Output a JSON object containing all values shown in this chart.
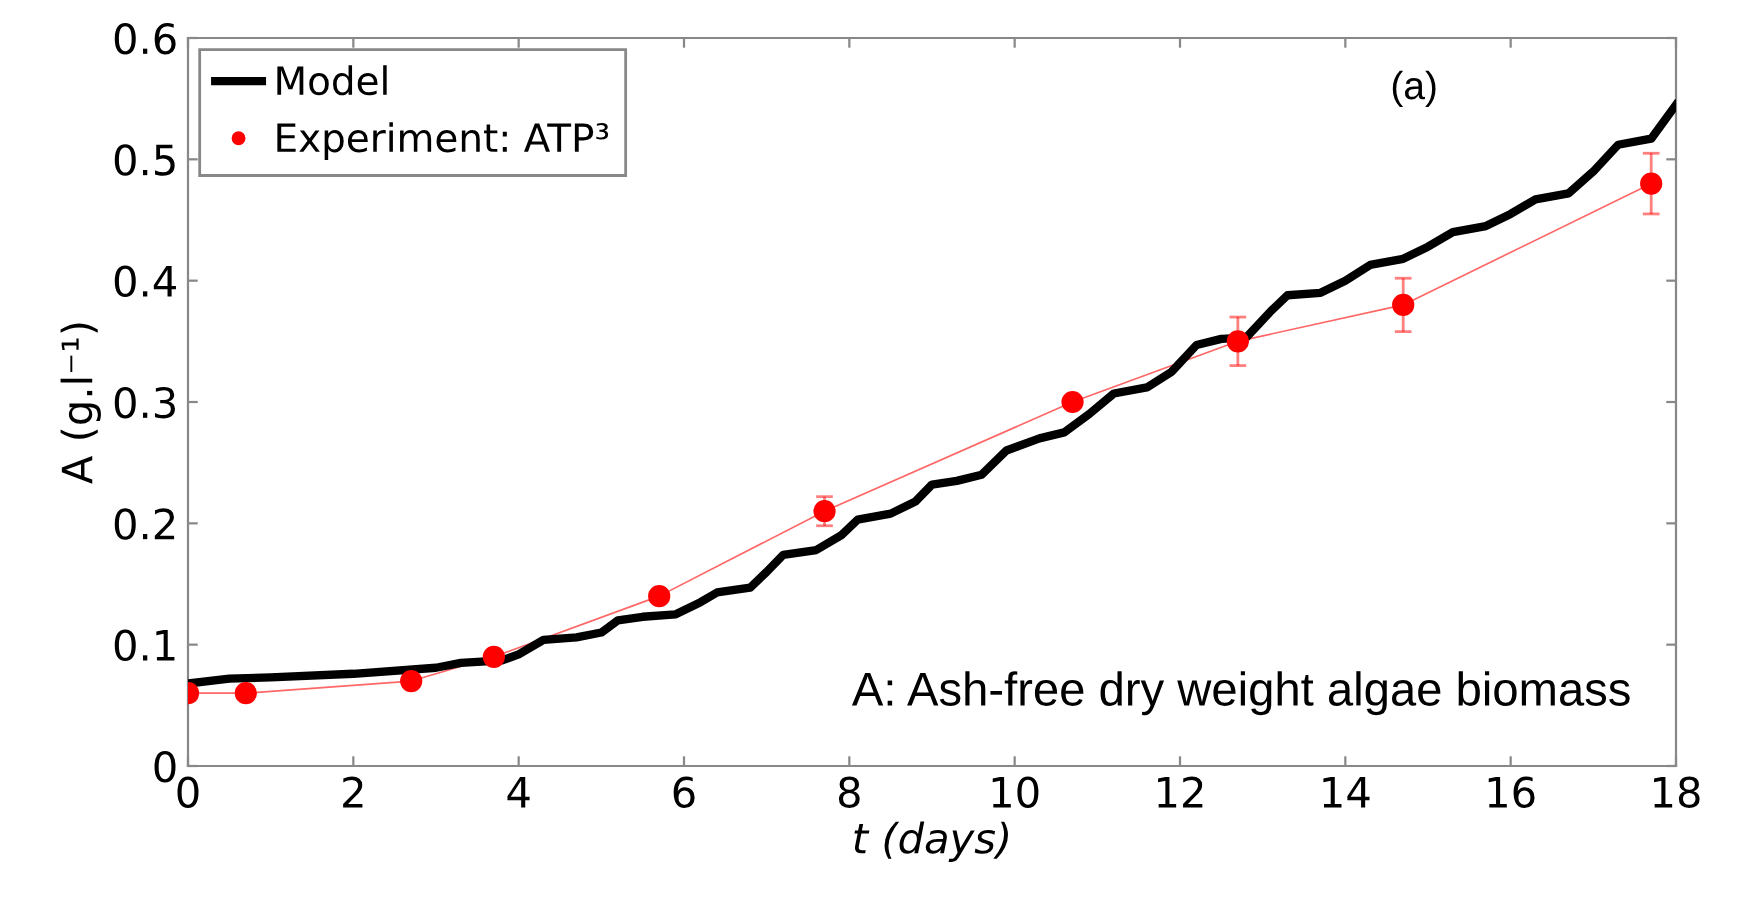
{
  "chart_data": {
    "type": "line",
    "xlabel": "t (days)",
    "ylabel": "A (g.l⁻¹)",
    "xlim": [
      0,
      18
    ],
    "xticks": [
      0,
      2,
      4,
      6,
      8,
      10,
      12,
      14,
      16,
      18
    ],
    "ylim": [
      0,
      0.6
    ],
    "yticks": [
      0,
      0.1,
      0.2,
      0.3,
      0.4,
      0.5,
      0.6
    ],
    "grid": false,
    "legend": "top left",
    "annotations": [
      "(a)",
      "A: Ash-free dry weight algae biomass"
    ],
    "series": [
      {
        "name": "Model",
        "color": "#000000",
        "marker": "none",
        "line_style": "solid",
        "x": [
          0,
          0.5,
          1,
          2,
          3,
          3.3,
          3.8,
          4.0,
          4.3,
          4.7,
          5,
          5.2,
          5.5,
          5.9,
          6.2,
          6.4,
          6.8,
          7.0,
          7.2,
          7.6,
          7.9,
          8.1,
          8.5,
          8.8,
          9.0,
          9.3,
          9.6,
          9.9,
          10.3,
          10.6,
          10.9,
          11.2,
          11.6,
          11.9,
          12.2,
          12.5,
          12.8,
          13.1,
          13.3,
          13.7,
          14.0,
          14.3,
          14.7,
          15.0,
          15.3,
          15.7,
          16.0,
          16.3,
          16.7,
          17.0,
          17.3,
          17.7,
          18
        ],
        "values": [
          0.068,
          0.072,
          0.073,
          0.076,
          0.081,
          0.085,
          0.087,
          0.092,
          0.104,
          0.106,
          0.11,
          0.12,
          0.123,
          0.125,
          0.135,
          0.143,
          0.147,
          0.16,
          0.174,
          0.178,
          0.19,
          0.203,
          0.208,
          0.218,
          0.232,
          0.235,
          0.24,
          0.26,
          0.27,
          0.275,
          0.29,
          0.307,
          0.312,
          0.325,
          0.347,
          0.352,
          0.353,
          0.375,
          0.388,
          0.39,
          0.4,
          0.413,
          0.418,
          0.428,
          0.44,
          0.445,
          0.455,
          0.467,
          0.472,
          0.49,
          0.512,
          0.517,
          0.545
        ]
      },
      {
        "name": "Experiment: ATP³",
        "color": "#ff0000",
        "marker": "circle",
        "line_style": "solid",
        "x": [
          0,
          0.7,
          2.7,
          3.7,
          5.7,
          7.7,
          10.7,
          12.7,
          14.7,
          17.7
        ],
        "values": [
          0.06,
          0.06,
          0.07,
          0.09,
          0.14,
          0.21,
          0.3,
          0.35,
          0.38,
          0.48
        ],
        "errors": [
          0.006,
          null,
          null,
          null,
          null,
          0.012,
          null,
          0.02,
          0.022,
          0.025
        ]
      }
    ]
  }
}
